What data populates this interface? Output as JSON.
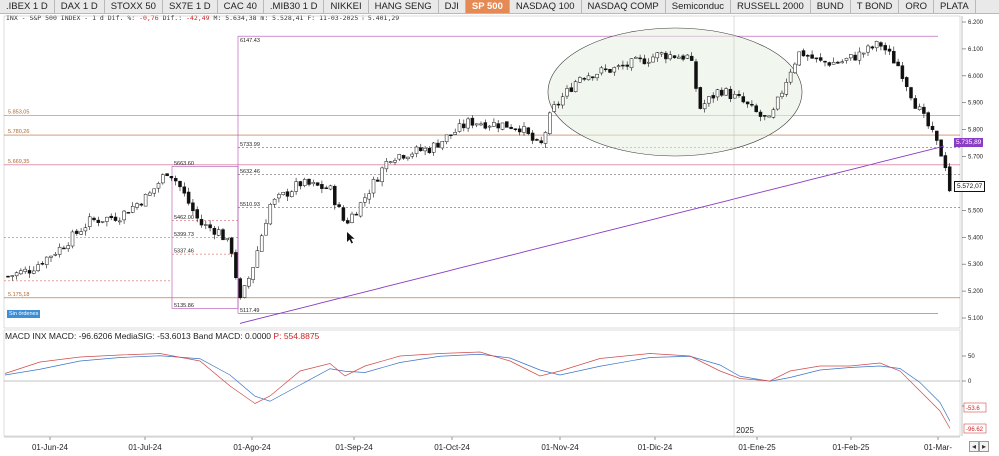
{
  "tabs": [
    ".IBEX 1 D",
    "DAX 1 D",
    "STOXX 50",
    "SX7E 1 D",
    "CAC 40",
    ".MIB30 1 D",
    "NIKKEI",
    "HANG SENG",
    "DJI",
    "SP 500",
    "NASDAQ 100",
    "NASDAQ COMP",
    "Semiconduc",
    "RUSSELL 2000",
    "BUND",
    "T BOND",
    "ORO",
    "PLATA"
  ],
  "active_tab": "SP 500",
  "info_line": {
    "prefix": "INX - S&P 500 INDEX - 1 d Dif. %:",
    "pct": "-0,76",
    "diff_label": "Dif.:",
    "diff": "-42,49",
    "rest": "M: 5.634,38 m: 5.528,41 F: 11-03-2025 ⁞ 5.401,29"
  },
  "chart_data": {
    "type": "candlestick",
    "ylim": [
      5080,
      6220
    ],
    "y_ticks": [
      "6.200",
      "6.100",
      "6.000",
      "5.900",
      "5.800",
      "5.700",
      "5.600",
      "5.500",
      "5.400",
      "5.300",
      "5.200",
      "5.100"
    ],
    "x_labels": [
      "01-Jun-24",
      "01-Jul-24",
      "01-Ago-24",
      "01-Sep-24",
      "01-Oct-24",
      "01-Nov-24",
      "01-Dic-24",
      "01-Ene-25",
      "01-Feb-25",
      "01-Mar-"
    ],
    "year_label": "2025",
    "left_levels": [
      "5.853,05",
      "5.780,26",
      "5.669,35",
      "5.175,18"
    ],
    "fib_levels": [
      "6147.43",
      "5733.99",
      "5632.46",
      "5510.93",
      "5663.60",
      "5462.00",
      "5399.73",
      "5337.46",
      "5135.86",
      "5117.49"
    ],
    "price_tags": {
      "sma": "5.735,89",
      "last": "5.572,07"
    },
    "macd_axis": [
      "50",
      "0",
      "-50"
    ],
    "macd_tags": [
      "-53.6",
      "-96.62"
    ]
  },
  "macd_header": {
    "title": "MACD INX MACD:",
    "macd": "-96.6206",
    "medsig": "MediaSIG: -53.6013",
    "band": "Band MACD: 0.0000",
    "p": "P: 554.8875"
  },
  "orders_badge": "Sin órdenes",
  "colors": {
    "up": "#ffffff",
    "down": "#111111",
    "sma": "#8a3cc4",
    "macd": "#d14a4a",
    "signal": "#3a74c9",
    "tab_active": "#e58a55"
  }
}
